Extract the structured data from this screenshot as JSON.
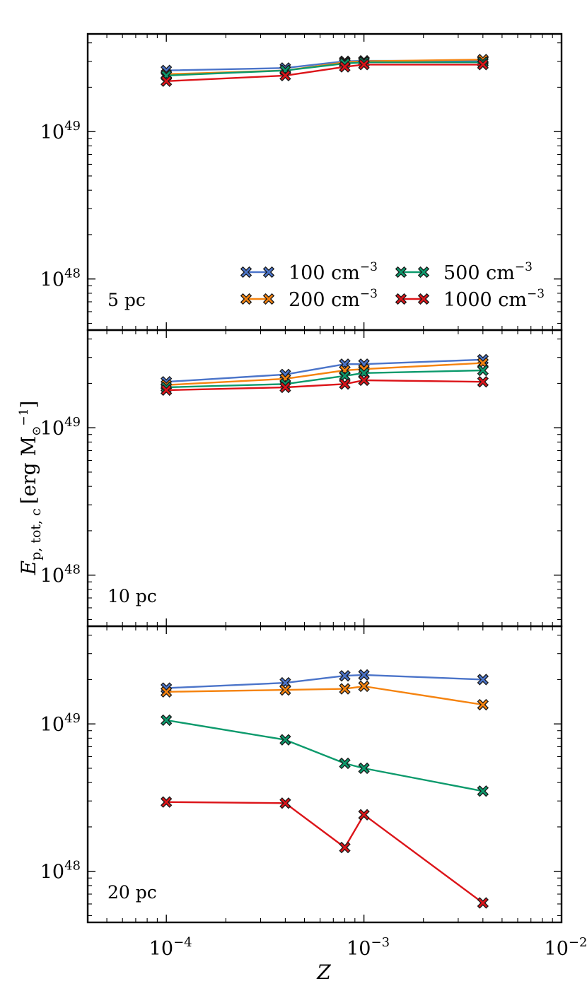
{
  "chart_data": {
    "type": "line",
    "xlabel": "Z",
    "ylabel": {
      "symbol": "E",
      "subscript": "p, tot, c",
      "unit": "[erg M",
      "unit_sub": "⊙",
      "unit_sup": "−1",
      "unit_close": "]"
    },
    "x_scale": "log",
    "y_scale": "log",
    "xlim": [
      4e-05,
      0.01
    ],
    "ylim": [
      4.5e+47,
      4.6e+49
    ],
    "x": [
      0.0001,
      0.0004,
      0.0008,
      0.001,
      0.004
    ],
    "x_ticks": [
      {
        "value": 0.0001,
        "base": "10",
        "exp": "−4"
      },
      {
        "value": 0.001,
        "base": "10",
        "exp": "−3"
      },
      {
        "value": 0.01,
        "base": "10",
        "exp": "−2"
      }
    ],
    "y_ticks": [
      {
        "value": 1e+48,
        "base": "10",
        "exp": "48"
      },
      {
        "value": 1e+49,
        "base": "10",
        "exp": "49"
      }
    ],
    "grid": false,
    "marker": "x",
    "legend": {
      "placement": "lower-right of top panel",
      "columns": 2
    },
    "series_styles": [
      {
        "name": "100 cm",
        "exp": "−3",
        "color": "#4b74c9"
      },
      {
        "name": "200 cm",
        "exp": "−3",
        "color": "#f5830f"
      },
      {
        "name": "500 cm",
        "exp": "−3",
        "color": "#0c9a6c"
      },
      {
        "name": "1000 cm",
        "exp": "−3",
        "color": "#dc1419"
      }
    ],
    "panels": [
      {
        "label": "5 pc",
        "series": [
          {
            "name": "100 cm",
            "values": [
              2.6e+49,
              2.7e+49,
              3e+49,
              3.02e+49,
              3.02e+49
            ]
          },
          {
            "name": "200 cm",
            "values": [
              2.45e+49,
              2.6e+49,
              2.95e+49,
              3e+49,
              3.08e+49
            ]
          },
          {
            "name": "500 cm",
            "values": [
              2.4e+49,
              2.6e+49,
              2.9e+49,
              2.95e+49,
              2.95e+49
            ]
          },
          {
            "name": "1000 cm",
            "values": [
              2.2e+49,
              2.4e+49,
              2.75e+49,
              2.85e+49,
              2.85e+49
            ]
          }
        ]
      },
      {
        "label": "10 pc",
        "series": [
          {
            "name": "100 cm",
            "values": [
              2.05e+49,
              2.3e+49,
              2.7e+49,
              2.7e+49,
              2.9e+49
            ]
          },
          {
            "name": "200 cm",
            "values": [
              1.95e+49,
              2.15e+49,
              2.45e+49,
              2.5e+49,
              2.75e+49
            ]
          },
          {
            "name": "500 cm",
            "values": [
              1.88e+49,
              1.98e+49,
              2.25e+49,
              2.35e+49,
              2.45e+49
            ]
          },
          {
            "name": "1000 cm",
            "values": [
              1.8e+49,
              1.88e+49,
              1.98e+49,
              2.1e+49,
              2.05e+49
            ]
          }
        ]
      },
      {
        "label": "20 pc",
        "series": [
          {
            "name": "100 cm",
            "values": [
              1.75e+49,
              1.9e+49,
              2.12e+49,
              2.15e+49,
              2e+49
            ]
          },
          {
            "name": "200 cm",
            "values": [
              1.65e+49,
              1.7e+49,
              1.73e+49,
              1.8e+49,
              1.35e+49
            ]
          },
          {
            "name": "500 cm",
            "values": [
              1.06e+49,
              7.8e+48,
              5.4e+48,
              5e+48,
              3.5e+48
            ]
          },
          {
            "name": "1000 cm",
            "values": [
              2.95e+48,
              2.9e+48,
              1.45e+48,
              2.42e+48,
              6.1e+47
            ]
          }
        ]
      }
    ]
  }
}
